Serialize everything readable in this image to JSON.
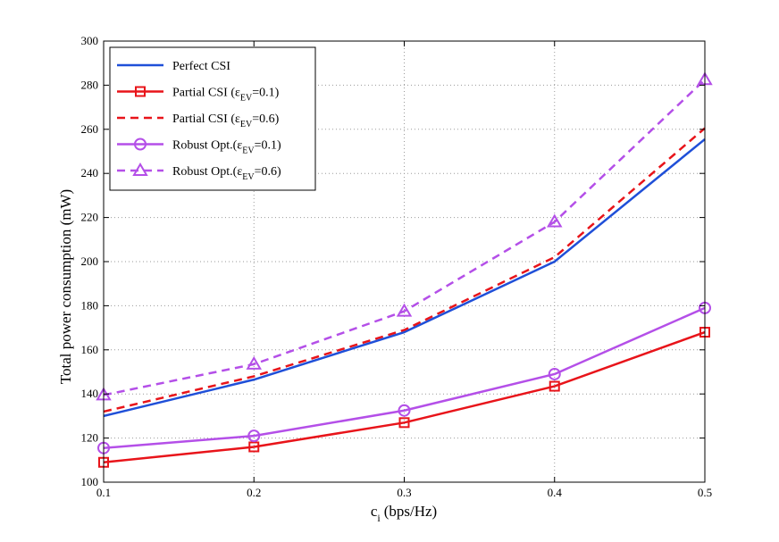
{
  "chart_data": {
    "type": "line",
    "title": "",
    "xlabel": "c",
    "xlabel_sub": "i",
    "xlabel_unit": "(bps/Hz)",
    "ylabel": "Total power consumption (mW)",
    "x": [
      0.1,
      0.2,
      0.3,
      0.4,
      0.5
    ],
    "xlim": [
      0.1,
      0.5
    ],
    "ylim": [
      100,
      300
    ],
    "xticks": [
      "0.1",
      "0.2",
      "0.3",
      "0.4",
      "0.5"
    ],
    "yticks": [
      "100",
      "120",
      "140",
      "160",
      "180",
      "200",
      "220",
      "240",
      "260",
      "280",
      "300"
    ],
    "grid": true,
    "legend_position": "top-left",
    "series": [
      {
        "name": "Perfect CSI",
        "legend_main": "Perfect CSI",
        "legend_sub": "",
        "legend_tail": "",
        "color": "#1f4fd8",
        "dash": "solid",
        "marker": "none",
        "values": [
          130,
          146.5,
          168,
          200,
          255.5
        ]
      },
      {
        "name": "Partial CSI (εEV=0.1)",
        "legend_main": "Partial CSI (ε",
        "legend_sub": "EV",
        "legend_tail": "=0.1)",
        "color": "#e8141a",
        "dash": "solid",
        "marker": "square",
        "values": [
          109,
          116,
          127,
          143.5,
          168
        ]
      },
      {
        "name": "Partial CSI (εEV=0.6)",
        "legend_main": "Partial CSI (ε",
        "legend_sub": "EV",
        "legend_tail": "=0.6)",
        "color": "#e8141a",
        "dash": "dashed",
        "marker": "none",
        "values": [
          132,
          148,
          169,
          202,
          260.5
        ]
      },
      {
        "name": "Robust Opt.(εEV=0.1)",
        "legend_main": "Robust Opt.(ε",
        "legend_sub": "EV",
        "legend_tail": "=0.1)",
        "color": "#b44fe8",
        "dash": "solid",
        "marker": "circle",
        "values": [
          115.5,
          121,
          132.5,
          149,
          179
        ]
      },
      {
        "name": "Robust Opt.(εEV=0.6)",
        "legend_main": "Robust Opt.(ε",
        "legend_sub": "EV",
        "legend_tail": "=0.6)",
        "color": "#b44fe8",
        "dash": "dashed",
        "marker": "triangle",
        "values": [
          139.5,
          153.5,
          177.5,
          218,
          282.5
        ]
      }
    ]
  }
}
